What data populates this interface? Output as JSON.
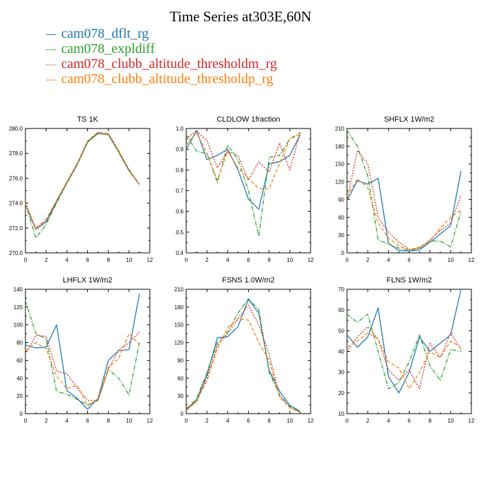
{
  "title": "Time Series at303E,60N",
  "legend": [
    {
      "name": "cam078_dflt_rg",
      "color": "#1f77b4",
      "dash": "solid"
    },
    {
      "name": "cam078_expldiff",
      "color": "#2ca02c",
      "dash": "dashdot"
    },
    {
      "name": "cam078_clubb_altitude_thresholdm_rg",
      "color": "#d62728",
      "dash": "dotted"
    },
    {
      "name": "cam078_clubb_altitude_thresholdp_rg",
      "color": "#ff7f0e",
      "dash": "dashed"
    }
  ],
  "chart_data": [
    {
      "type": "line",
      "title": "TS   1K",
      "x": [
        0,
        1,
        2,
        3,
        4,
        5,
        6,
        7,
        8,
        9,
        10,
        11
      ],
      "xlim": [
        0,
        12
      ],
      "xticks": [
        0,
        2,
        4,
        6,
        8,
        10,
        12
      ],
      "ylim": [
        270,
        280
      ],
      "yticks": [
        "270.0",
        "272.0",
        "274.0",
        "276.0",
        "278.0",
        "280.0"
      ],
      "series": [
        {
          "name": "cam078_dflt_rg",
          "values": [
            273.9,
            271.9,
            272.5,
            274.1,
            275.6,
            277.1,
            278.9,
            279.6,
            279.5,
            278.1,
            276.6,
            275.5
          ]
        },
        {
          "name": "cam078_expldiff",
          "values": [
            274.0,
            271.2,
            272.3,
            274.0,
            275.6,
            277.1,
            278.9,
            279.6,
            279.5,
            278.1,
            276.6,
            275.5
          ]
        },
        {
          "name": "cam078_clubb_altitude_thresholdm_rg",
          "values": [
            274.0,
            271.9,
            272.6,
            274.2,
            275.7,
            277.2,
            279.0,
            279.7,
            279.6,
            278.2,
            276.7,
            275.5
          ]
        },
        {
          "name": "cam078_clubb_altitude_thresholdp_rg",
          "values": [
            274.0,
            272.0,
            272.7,
            274.2,
            275.7,
            277.2,
            279.0,
            279.7,
            279.6,
            278.2,
            276.7,
            275.5
          ]
        }
      ]
    },
    {
      "type": "line",
      "title": "CLDLOW   1fraction",
      "x": [
        0,
        1,
        2,
        3,
        4,
        5,
        6,
        7,
        8,
        9,
        10,
        11
      ],
      "xlim": [
        0,
        12
      ],
      "xticks": [
        0,
        2,
        4,
        6,
        8,
        10,
        12
      ],
      "ylim": [
        0.4,
        1.0
      ],
      "yticks": [
        "0.4",
        "0.5",
        "0.6",
        "0.7",
        "0.8",
        "0.9",
        "1.0"
      ],
      "series": [
        {
          "name": "cam078_dflt_rg",
          "values": [
            0.9,
            0.99,
            0.85,
            0.87,
            0.9,
            0.8,
            0.66,
            0.61,
            0.83,
            0.84,
            0.87,
            0.97
          ]
        },
        {
          "name": "cam078_expldiff",
          "values": [
            0.97,
            0.89,
            0.88,
            0.74,
            0.92,
            0.85,
            0.7,
            0.48,
            0.86,
            0.87,
            0.95,
            0.98
          ]
        },
        {
          "name": "cam078_clubb_altitude_thresholdm_rg",
          "values": [
            0.95,
            0.99,
            0.94,
            0.81,
            0.89,
            0.87,
            0.75,
            0.84,
            0.79,
            0.93,
            0.8,
            0.98
          ]
        },
        {
          "name": "cam078_clubb_altitude_thresholdp_rg",
          "values": [
            0.92,
            0.98,
            0.88,
            0.75,
            0.89,
            0.81,
            0.76,
            0.71,
            0.71,
            0.83,
            0.95,
            0.97
          ]
        }
      ]
    },
    {
      "type": "line",
      "title": "SHFLX   1W/m2",
      "x": [
        0,
        1,
        2,
        3,
        4,
        5,
        6,
        7,
        8,
        9,
        10,
        11
      ],
      "xlim": [
        0,
        12
      ],
      "xticks": [
        0,
        2,
        4,
        6,
        8,
        10,
        12
      ],
      "ylim": [
        0,
        210
      ],
      "yticks": [
        "0",
        "30",
        "60",
        "90",
        "120",
        "150",
        "180",
        "210"
      ],
      "series": [
        {
          "name": "cam078_dflt_rg",
          "values": [
            88,
            122,
            116,
            126,
            16,
            4,
            3,
            5,
            18,
            32,
            46,
            138
          ]
        },
        {
          "name": "cam078_expldiff",
          "values": [
            207,
            180,
            130,
            22,
            15,
            8,
            4,
            8,
            20,
            20,
            10,
            70
          ]
        },
        {
          "name": "cam078_clubb_altitude_thresholdm_rg",
          "values": [
            88,
            173,
            150,
            60,
            35,
            18,
            6,
            8,
            22,
            38,
            50,
            97
          ]
        },
        {
          "name": "cam078_clubb_altitude_thresholdp_rg",
          "values": [
            95,
            125,
            110,
            50,
            25,
            12,
            5,
            10,
            20,
            42,
            60,
            72
          ]
        }
      ]
    },
    {
      "type": "line",
      "title": "LHFLX   1W/m2",
      "x": [
        0,
        1,
        2,
        3,
        4,
        5,
        6,
        7,
        8,
        9,
        10,
        11
      ],
      "xlim": [
        0,
        12
      ],
      "xticks": [
        0,
        2,
        4,
        6,
        8,
        10,
        12
      ],
      "ylim": [
        0,
        140
      ],
      "yticks": [
        "0",
        "20",
        "40",
        "60",
        "80",
        "100",
        "120",
        "140"
      ],
      "series": [
        {
          "name": "cam078_dflt_rg",
          "values": [
            77,
            74,
            75,
            100,
            26,
            17,
            5,
            17,
            60,
            71,
            72,
            135
          ]
        },
        {
          "name": "cam078_expldiff",
          "values": [
            127,
            90,
            84,
            25,
            22,
            16,
            10,
            15,
            50,
            40,
            21,
            80
          ]
        },
        {
          "name": "cam078_clubb_altitude_thresholdm_rg",
          "values": [
            67,
            88,
            87,
            48,
            45,
            29,
            15,
            15,
            50,
            72,
            80,
            92
          ]
        },
        {
          "name": "cam078_clubb_altitude_thresholdp_rg",
          "values": [
            71,
            80,
            73,
            42,
            28,
            32,
            9,
            16,
            52,
            62,
            90,
            78
          ]
        }
      ]
    },
    {
      "type": "line",
      "title": "FSNS   1.0W/m2",
      "x": [
        0,
        1,
        2,
        3,
        4,
        5,
        6,
        7,
        8,
        9,
        10,
        11
      ],
      "xlim": [
        0,
        12
      ],
      "xticks": [
        0,
        2,
        4,
        6,
        8,
        10,
        12
      ],
      "ylim": [
        0,
        210
      ],
      "yticks": [
        "0",
        "30",
        "60",
        "90",
        "120",
        "150",
        "180",
        "210"
      ],
      "series": [
        {
          "name": "cam078_dflt_rg",
          "values": [
            7,
            23,
            65,
            128,
            130,
            147,
            193,
            170,
            73,
            38,
            14,
            4
          ]
        },
        {
          "name": "cam078_expldiff",
          "values": [
            8,
            25,
            70,
            120,
            138,
            170,
            194,
            176,
            70,
            32,
            12,
            3
          ]
        },
        {
          "name": "cam078_clubb_altitude_thresholdm_rg",
          "values": [
            6,
            20,
            60,
            115,
            135,
            160,
            183,
            150,
            100,
            30,
            10,
            3
          ]
        },
        {
          "name": "cam078_clubb_altitude_thresholdp_rg",
          "values": [
            5,
            22,
            55,
            110,
            145,
            160,
            158,
            120,
            90,
            28,
            10,
            2
          ]
        }
      ]
    },
    {
      "type": "line",
      "title": "FLNS   1W/m2",
      "x": [
        0,
        1,
        2,
        3,
        4,
        5,
        6,
        7,
        8,
        9,
        10,
        11
      ],
      "xlim": [
        0,
        12
      ],
      "xticks": [
        0,
        2,
        4,
        6,
        8,
        10,
        12
      ],
      "ylim": [
        10,
        70
      ],
      "yticks": [
        "10",
        "20",
        "30",
        "40",
        "50",
        "60",
        "70"
      ],
      "series": [
        {
          "name": "cam078_dflt_rg",
          "values": [
            48,
            42,
            47,
            61,
            28,
            20,
            30,
            47,
            40,
            44,
            48,
            70
          ]
        },
        {
          "name": "cam078_expldiff",
          "values": [
            58,
            54,
            58,
            40,
            22,
            25,
            35,
            48,
            33,
            26,
            41,
            40
          ]
        },
        {
          "name": "cam078_clubb_altitude_thresholdm_rg",
          "values": [
            40,
            47,
            52,
            46,
            31,
            26,
            31,
            22,
            44,
            37,
            49,
            41
          ]
        },
        {
          "name": "cam078_clubb_altitude_thresholdp_rg",
          "values": [
            42,
            45,
            49,
            46,
            35,
            32,
            22,
            30,
            40,
            37,
            45,
            42
          ]
        }
      ]
    }
  ]
}
